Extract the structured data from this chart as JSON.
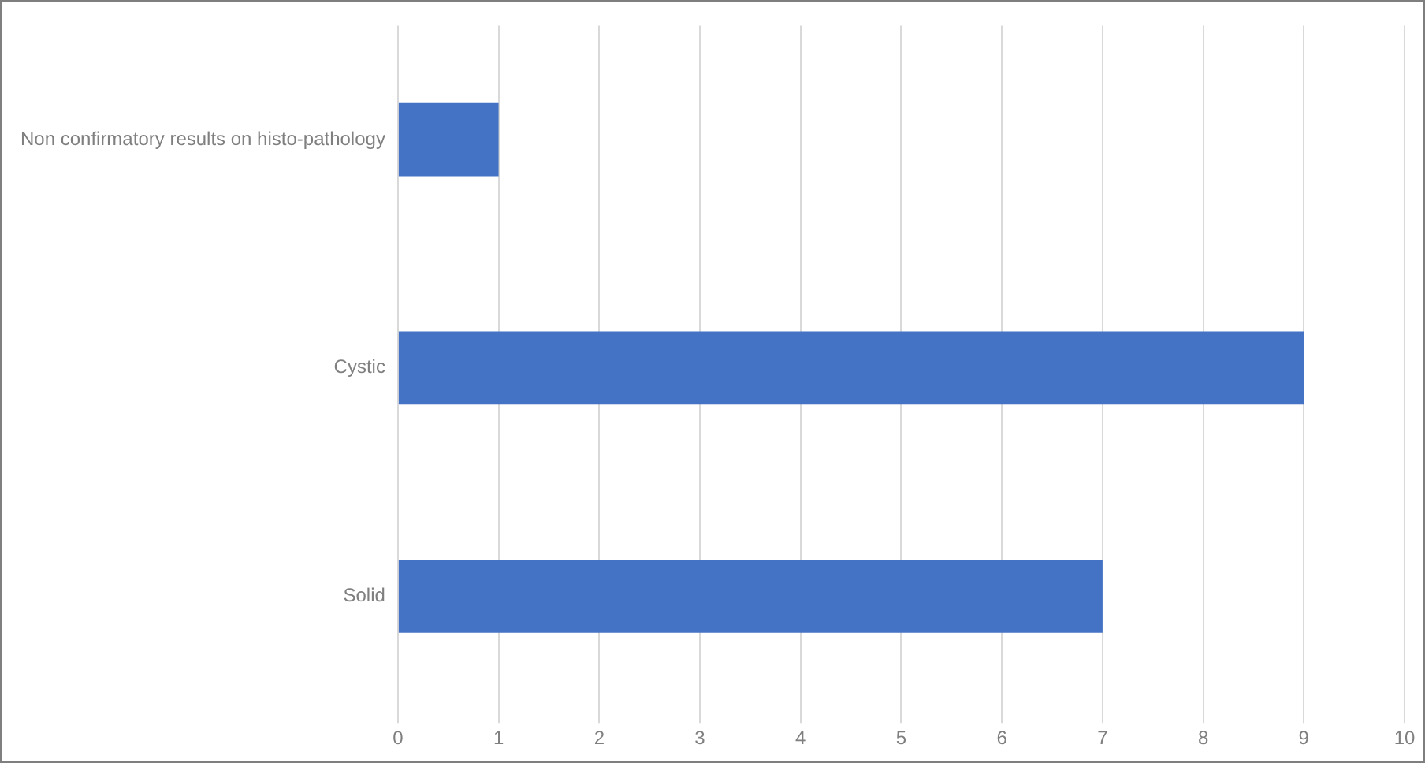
{
  "chart_data": {
    "type": "bar",
    "orientation": "horizontal",
    "categories": [
      "Non confirmatory results on histo-pathology",
      "Cystic",
      "Solid"
    ],
    "values": [
      1,
      9,
      7
    ],
    "color": "#4472c4",
    "xlim": [
      0,
      10
    ],
    "xticks": [
      0,
      1,
      2,
      3,
      4,
      5,
      6,
      7,
      8,
      9,
      10
    ],
    "grid": "x"
  }
}
